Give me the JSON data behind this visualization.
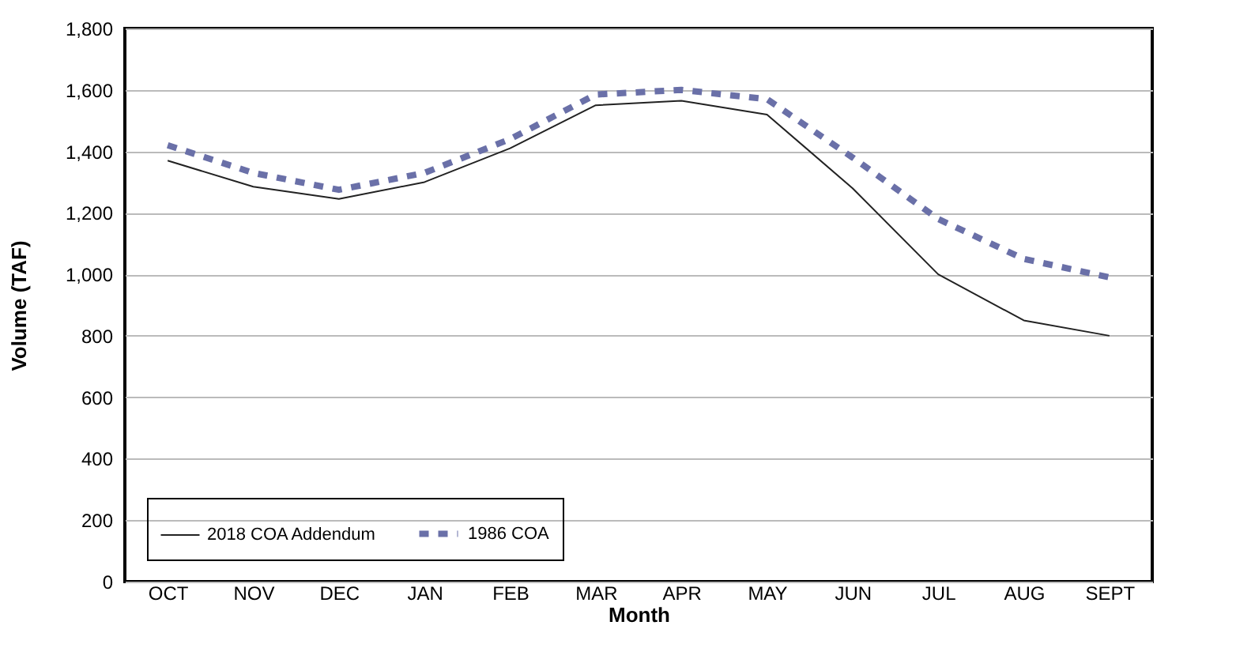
{
  "chart_data": {
    "type": "line",
    "xlabel": "Month",
    "ylabel": "Volume (TAF)",
    "categories": [
      "OCT",
      "NOV",
      "DEC",
      "JAN",
      "FEB",
      "MAR",
      "APR",
      "MAY",
      "JUN",
      "JUL",
      "AUG",
      "SEPT"
    ],
    "series": [
      {
        "name": "2018 COA Addendum",
        "color": "#222222",
        "line_style": "solid",
        "values": [
          1370,
          1285,
          1245,
          1300,
          1410,
          1550,
          1565,
          1520,
          1280,
          1000,
          850,
          800
        ]
      },
      {
        "name": "1986 COA",
        "color": "#6a70a8",
        "line_style": "dashed",
        "values": [
          1420,
          1330,
          1275,
          1330,
          1440,
          1585,
          1600,
          1570,
          1380,
          1180,
          1050,
          990
        ]
      }
    ],
    "ylim": [
      0,
      1800
    ],
    "yticks": [
      0,
      200,
      400,
      600,
      800,
      {
        "value": 1000,
        "label": "1,000"
      },
      {
        "value": 1200,
        "label": "1,200"
      },
      {
        "value": 1400,
        "label": "1,400"
      },
      {
        "value": 1600,
        "label": "1,600"
      },
      {
        "value": 1800,
        "label": "1,800"
      }
    ],
    "grid": "y",
    "legend": "bottom left",
    "marker": "none"
  }
}
